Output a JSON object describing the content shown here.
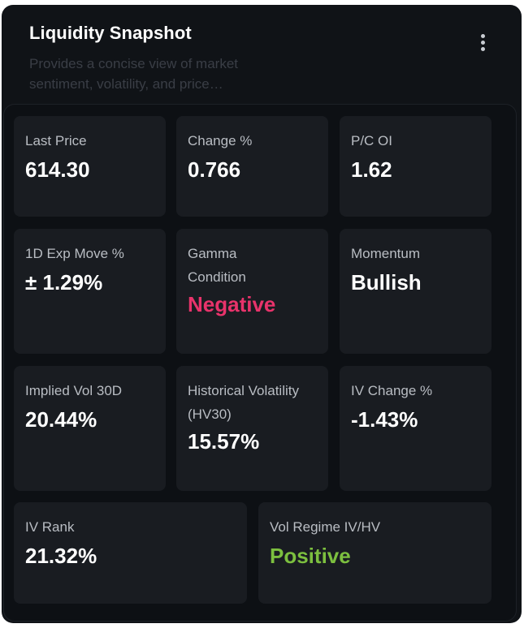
{
  "header": {
    "title": "Liquidity Snapshot",
    "description": "Provides a concise view of market sentiment, volatility, and price…",
    "menu_icon": "more-vertical-icon"
  },
  "metrics": {
    "last_price": {
      "label": "Last Price",
      "value": "614.30"
    },
    "change_pct": {
      "label": "Change %",
      "value": "0.766"
    },
    "pc_oi": {
      "label": "P/C OI",
      "value": "1.62"
    },
    "exp_move": {
      "label": "1D Exp Move %",
      "value": "± 1.29%"
    },
    "gamma": {
      "label": "Gamma Condition",
      "value": "Negative"
    },
    "momentum": {
      "label": "Momentum",
      "value": "Bullish"
    },
    "iv30": {
      "label": "Implied Vol 30D",
      "value": "20.44%"
    },
    "hv30": {
      "label": "Historical Volatility (HV30)",
      "value": "15.57%"
    },
    "iv_change": {
      "label": "IV Change %",
      "value": "-1.43%"
    },
    "iv_rank": {
      "label": "IV Rank",
      "value": "21.32%"
    },
    "vol_regime": {
      "label": "Vol Regime IV/HV",
      "value": "Positive"
    }
  },
  "colors": {
    "negative": "#e8336b",
    "positive": "#7cbf3f",
    "card_bg": "#101317",
    "tile_bg": "#191c21"
  }
}
